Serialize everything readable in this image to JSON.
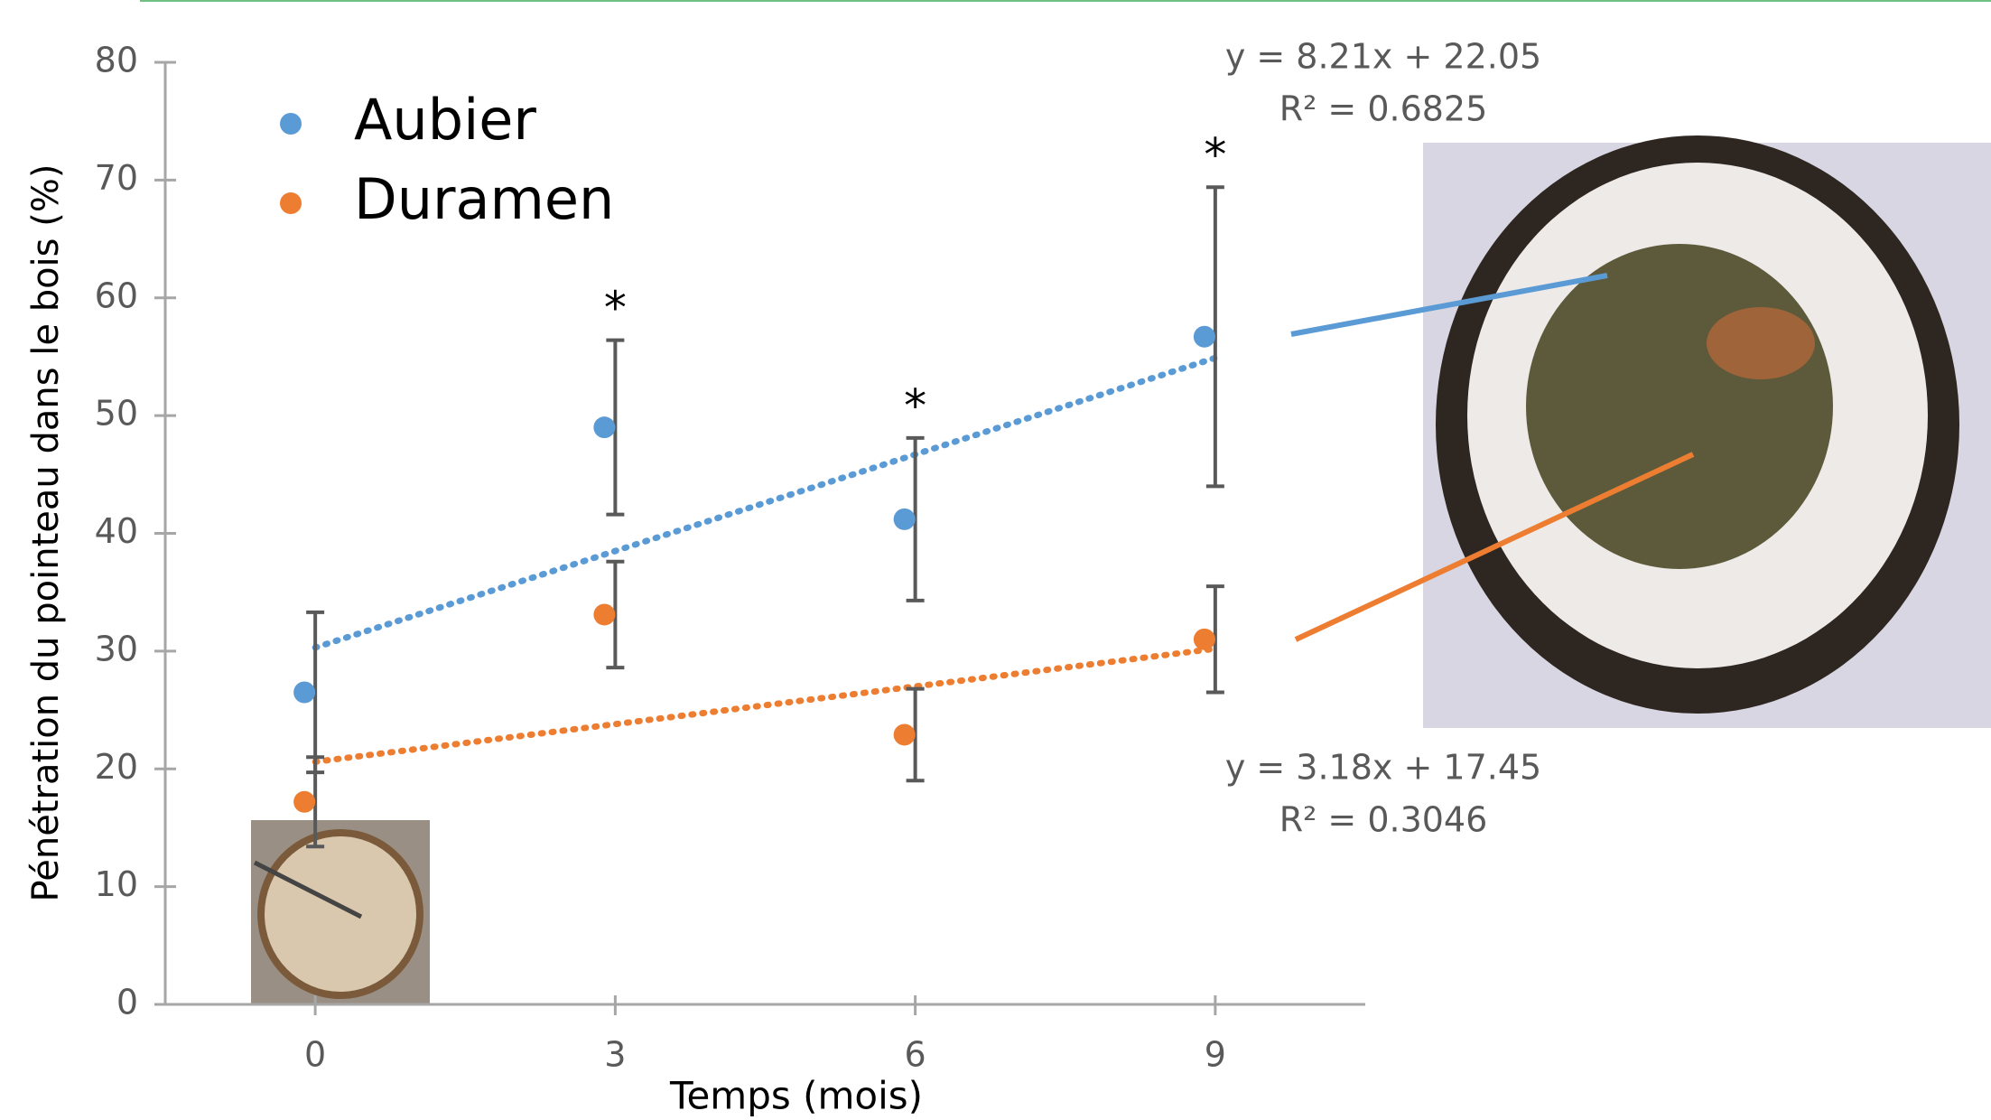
{
  "chart_data": {
    "type": "scatter",
    "x_label": "Temps (mois)",
    "y_label": "Pénétration du pointeau dans le bois (%)",
    "xlim": [
      -1.5,
      10.5
    ],
    "xticks": [
      0,
      3,
      6,
      9
    ],
    "ylim": [
      0,
      80
    ],
    "yticks": [
      0,
      10,
      20,
      30,
      40,
      50,
      60,
      70,
      80
    ],
    "series": [
      {
        "name": "Aubier",
        "color": "#5b9bd5",
        "x": [
          0,
          3,
          6,
          9
        ],
        "values": [
          26.5,
          49,
          41.2,
          56.7
        ],
        "errors": [
          6.8,
          7.4,
          6.9,
          12.7
        ],
        "trendline": {
          "x": [
            0,
            9
          ],
          "values": [
            30.3,
            54.9
          ],
          "equation": "y = 8.21x + 22.05",
          "r2": "R² = 0.6825"
        }
      },
      {
        "name": "Duramen",
        "color": "#ed7d31",
        "x": [
          0,
          3,
          6,
          9
        ],
        "values": [
          17.2,
          33.1,
          22.9,
          31.0
        ],
        "errors": [
          3.8,
          4.5,
          3.9,
          4.5
        ],
        "trendline": {
          "x": [
            0,
            9
          ],
          "values": [
            20.6,
            30.2
          ],
          "equation": "y = 3.18x + 17.45",
          "r2": "R² = 0.3046"
        }
      }
    ],
    "significance": [
      {
        "x": 3,
        "label": "*"
      },
      {
        "x": 6,
        "label": "*"
      },
      {
        "x": 9,
        "label": "*"
      }
    ]
  }
}
